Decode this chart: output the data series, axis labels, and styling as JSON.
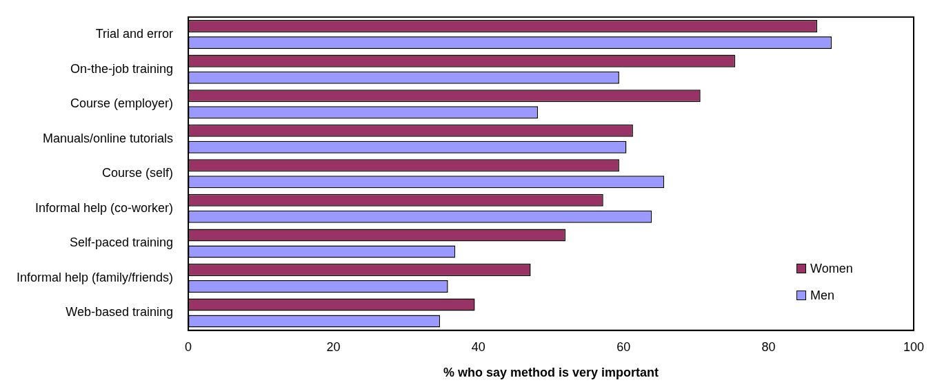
{
  "chart_data": {
    "type": "bar",
    "orientation": "horizontal",
    "xlabel": "% who say method is very important",
    "categories": [
      "Trial and error",
      "On-the-job training",
      "Course (employer)",
      "Manuals/online tutorials",
      "Course (self)",
      "Informal help (co-worker)",
      "Self-paced training",
      "Informal help (family/friends)",
      "Web-based training"
    ],
    "series": [
      {
        "name": "Women",
        "color": "#993366",
        "values": [
          86.7,
          75.4,
          70.6,
          61.3,
          59.4,
          57.2,
          52.0,
          47.2,
          39.5
        ]
      },
      {
        "name": "Men",
        "color": "#9999ff",
        "values": [
          88.7,
          59.4,
          48.2,
          60.4,
          65.6,
          63.9,
          36.8,
          35.8,
          34.7
        ]
      }
    ],
    "xlim": [
      0,
      100
    ],
    "xticks": [
      0,
      20,
      40,
      60,
      80,
      100
    ],
    "grid": false,
    "legend": "bottom right"
  }
}
